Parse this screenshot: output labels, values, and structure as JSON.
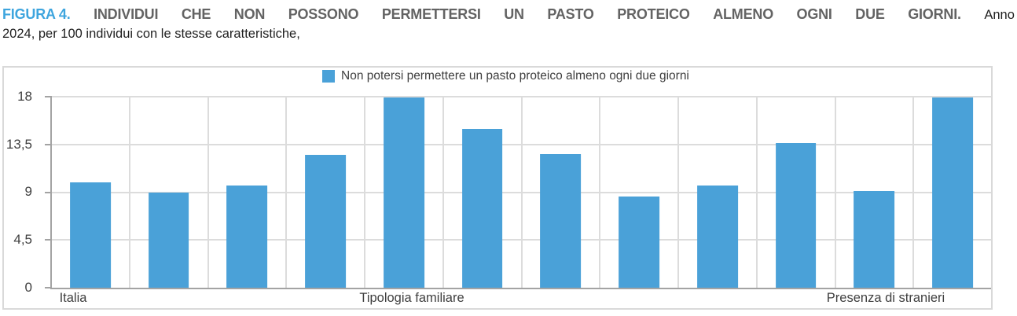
{
  "title": {
    "line1_words": [
      {
        "text": "FIGURA 4.",
        "class": "t-fig"
      },
      {
        "text": "INDIVIDUI",
        "class": "t-caps"
      },
      {
        "text": "CHE",
        "class": "t-caps"
      },
      {
        "text": "NON",
        "class": "t-caps"
      },
      {
        "text": "POSSONO",
        "class": "t-caps"
      },
      {
        "text": "PERMETTERSI",
        "class": "t-caps"
      },
      {
        "text": "UN",
        "class": "t-caps"
      },
      {
        "text": "PASTO",
        "class": "t-caps"
      },
      {
        "text": "PROTEICO",
        "class": "t-caps"
      },
      {
        "text": "ALMENO",
        "class": "t-caps"
      },
      {
        "text": "OGNI",
        "class": "t-caps"
      },
      {
        "text": "DUE",
        "class": "t-caps"
      },
      {
        "text": "GIORNI.",
        "class": "t-caps"
      },
      {
        "text": "Anno",
        "class": "t-reg"
      }
    ],
    "line2": "2024, per 100 individui con le stesse caratteristiche,"
  },
  "legend": {
    "label": "Non potersi permettere un pasto proteico almeno ogni due giorni",
    "swatch_color": "#4aa1d8"
  },
  "chart_data": {
    "type": "bar",
    "title": "FIGURA 4. INDIVIDUI CHE NON POSSONO PERMETTERSI UN PASTO PROTEICO ALMENO OGNI DUE GIORNI. Anno 2024, per 100 individui con le stesse caratteristiche,",
    "legend": [
      "Non potersi permettere un pasto proteico almeno ogni due giorni"
    ],
    "legend_position": "top-center",
    "values": [
      9.9,
      9.0,
      9.6,
      12.5,
      17.9,
      15.0,
      12.6,
      8.6,
      9.6,
      13.6,
      9.1,
      17.9
    ],
    "group_labels": [
      "Italia",
      "Tipologia familiare",
      "Presenza di stranieri"
    ],
    "ylim": [
      0,
      18
    ],
    "yticks": [
      0,
      4.5,
      9,
      13.5,
      18
    ],
    "ytick_labels": [
      "18",
      "13,5",
      "9",
      "4,5",
      "0"
    ],
    "grid": "horizontal-and-vertical",
    "bar_color": "#4aa1d8"
  }
}
